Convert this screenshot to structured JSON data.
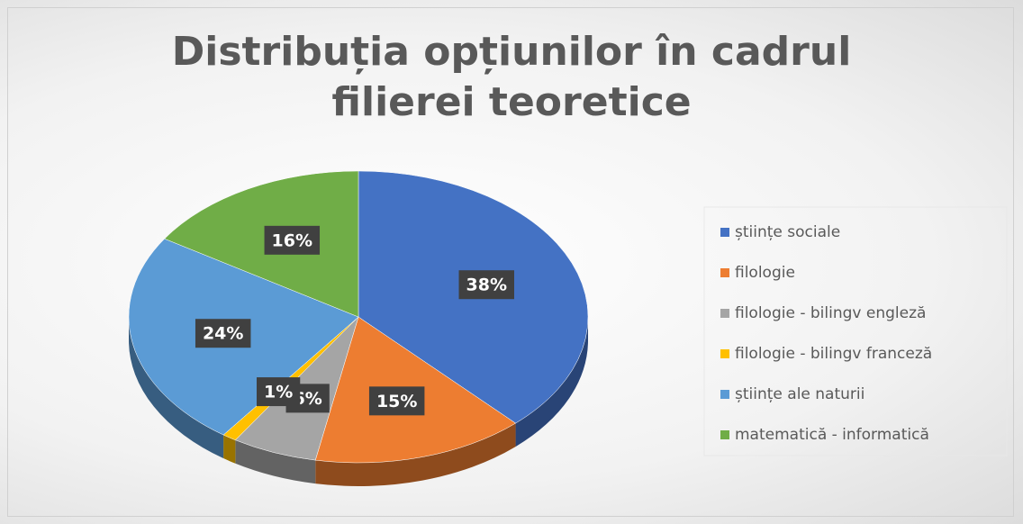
{
  "chart_data": {
    "type": "pie",
    "title": "Distribuția opțiunilor în cadrul filierei teoretice",
    "categories": [
      "științe sociale",
      "filologie",
      "filologie - bilingv engleză",
      "filologie - bilingv franceză",
      "științe ale naturii",
      "matematică - informatică"
    ],
    "values": [
      38,
      15,
      6,
      1,
      24,
      16
    ],
    "value_labels": [
      "38%",
      "15%",
      "6%",
      "1%",
      "24%",
      "16%"
    ],
    "colors": [
      "#4472c4",
      "#ed7d31",
      "#a5a5a5",
      "#ffc000",
      "#5b9bd5",
      "#70ad47"
    ],
    "legend": "right"
  }
}
